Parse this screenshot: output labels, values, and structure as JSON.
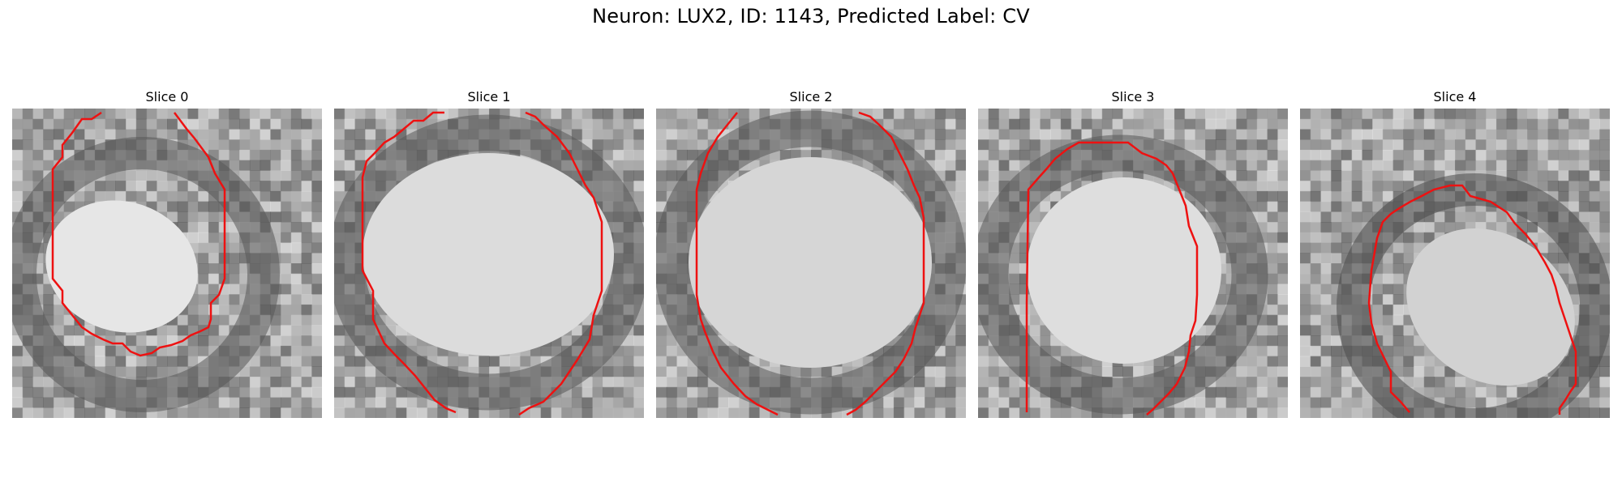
{
  "figure": {
    "title": "Neuron: LUX2, ID: 1143, Predicted Label: CV"
  },
  "contour_color": "#ee1111",
  "panels": [
    {
      "title": "Slice 0"
    },
    {
      "title": "Slice 1"
    },
    {
      "title": "Slice 2"
    },
    {
      "title": "Slice 3"
    },
    {
      "title": "Slice 4"
    }
  ]
}
